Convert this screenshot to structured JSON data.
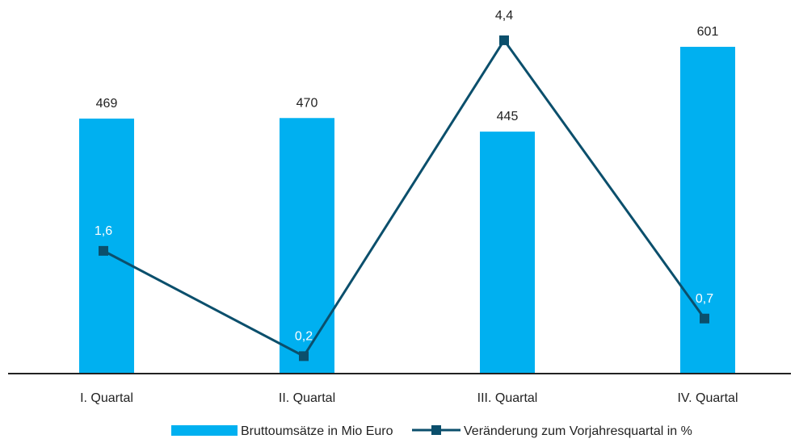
{
  "chart_data": {
    "type": "bar",
    "categories": [
      "I. Quartal",
      "II. Quartal",
      "III. Quartal",
      "IV. Quartal"
    ],
    "series": [
      {
        "name": "Bruttoumsätze in Mio Euro",
        "type": "bar",
        "values": [
          469,
          470,
          445,
          601
        ],
        "labels": [
          "469",
          "470",
          "445",
          "601"
        ],
        "color": "#00b0f0"
      },
      {
        "name": "Veränderung zum Vorjahresquartal in %",
        "type": "line",
        "values": [
          1.6,
          0.2,
          4.4,
          0.7
        ],
        "labels": [
          "1,6",
          "0,2",
          "4,4",
          "0,7"
        ],
        "color": "#0b4f6c",
        "label_colors": [
          "#ffffff",
          "#ffffff",
          "#222222",
          "#ffffff"
        ]
      }
    ],
    "title": "",
    "xlabel": "",
    "ylabel": "",
    "bar_ylim": [
      0,
      650
    ],
    "line_ylim": [
      0,
      4.5
    ],
    "grid": false,
    "legend": "bottom-center"
  }
}
